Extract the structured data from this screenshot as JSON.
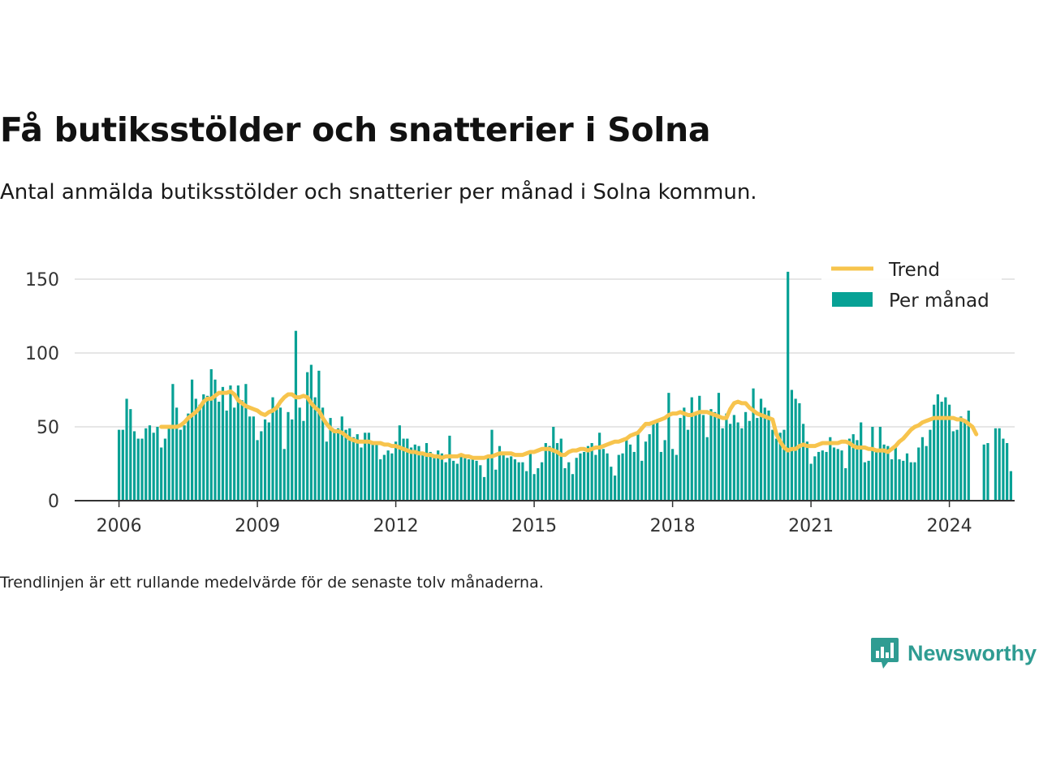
{
  "header": {
    "title": "Få butiksstölder och snatterier i Solna",
    "subtitle": "Antal anmälda butiksstölder och snatterier per månad i Solna kommun."
  },
  "footer": {
    "note": "Trendlinjen är ett rullande medelvärde för de senaste tolv månaderna."
  },
  "brand": {
    "name": "Newsworthy",
    "icon": "newsworthy-logo-icon"
  },
  "colors": {
    "bars": "#07a195",
    "trend": "#f7c44d",
    "grid": "#dddddd",
    "axis": "#333333",
    "brand": "#2f9c92"
  },
  "chart_data": {
    "type": "bar",
    "title": "Få butiksstölder och snatterier i Solna",
    "xlabel": "",
    "ylabel": "",
    "x_start": "2006-01",
    "x_ticks": [
      "2006",
      "2009",
      "2012",
      "2015",
      "2018",
      "2021",
      "2024"
    ],
    "y_ticks": [
      0,
      50,
      100,
      150
    ],
    "ylim": [
      0,
      160
    ],
    "grid": true,
    "legend_position": "top-right",
    "series": [
      {
        "name": "Per månad",
        "type": "bar",
        "values": [
          48,
          48,
          69,
          62,
          47,
          42,
          42,
          49,
          51,
          46,
          50,
          36,
          42,
          49,
          79,
          63,
          48,
          51,
          59,
          82,
          69,
          65,
          72,
          71,
          89,
          82,
          67,
          77,
          61,
          78,
          63,
          78,
          68,
          79,
          57,
          57,
          41,
          47,
          55,
          53,
          70,
          62,
          63,
          35,
          60,
          55,
          115,
          63,
          54,
          87,
          92,
          70,
          88,
          63,
          40,
          56,
          47,
          49,
          57,
          48,
          49,
          43,
          45,
          36,
          46,
          46,
          40,
          39,
          28,
          31,
          34,
          32,
          40,
          51,
          42,
          42,
          36,
          38,
          37,
          32,
          39,
          33,
          29,
          34,
          32,
          26,
          44,
          27,
          25,
          30,
          30,
          28,
          29,
          27,
          24,
          16,
          29,
          48,
          21,
          37,
          32,
          29,
          30,
          28,
          26,
          26,
          20,
          34,
          18,
          22,
          26,
          39,
          37,
          50,
          39,
          42,
          22,
          26,
          18,
          29,
          32,
          33,
          37,
          39,
          31,
          46,
          35,
          32,
          23,
          17,
          31,
          32,
          41,
          38,
          33,
          47,
          27,
          40,
          45,
          54,
          55,
          33,
          41,
          73,
          35,
          31,
          56,
          63,
          48,
          70,
          58,
          71,
          58,
          43,
          62,
          60,
          73,
          49,
          59,
          52,
          58,
          53,
          49,
          60,
          54,
          76,
          56,
          69,
          63,
          61,
          48,
          42,
          46,
          48,
          155,
          75,
          69,
          66,
          52,
          40,
          25,
          30,
          33,
          34,
          33,
          43,
          36,
          35,
          34,
          22,
          42,
          45,
          41,
          53,
          26,
          27,
          50,
          33,
          50,
          38,
          37,
          28,
          38,
          28,
          27,
          32,
          26,
          26,
          36,
          43,
          37,
          48,
          65,
          72,
          67,
          70,
          65,
          47,
          48,
          57,
          53,
          61,
          0,
          0,
          0,
          38,
          39,
          0,
          49,
          49,
          42,
          39,
          20
        ]
      },
      {
        "name": "Trend",
        "type": "line",
        "start_index": 11,
        "values": [
          50,
          50,
          50,
          50,
          50,
          51,
          53,
          56,
          58,
          60,
          63,
          67,
          69,
          69,
          71,
          73,
          73,
          73,
          74,
          72,
          68,
          66,
          64,
          63,
          62,
          61,
          59,
          58,
          60,
          61,
          63,
          67,
          70,
          72,
          72,
          70,
          70,
          71,
          70,
          66,
          63,
          61,
          56,
          52,
          49,
          47,
          47,
          46,
          44,
          42,
          41,
          40,
          40,
          40,
          40,
          39,
          39,
          39,
          38,
          38,
          37,
          37,
          36,
          35,
          34,
          33,
          33,
          32,
          32,
          31,
          31,
          30,
          30,
          29,
          30,
          30,
          30,
          30,
          31,
          30,
          30,
          29,
          29,
          29,
          29,
          30,
          30,
          31,
          32,
          32,
          32,
          32,
          31,
          31,
          31,
          32,
          33,
          33,
          34,
          35,
          35,
          35,
          34,
          33,
          31,
          31,
          33,
          34,
          34,
          35,
          35,
          34,
          35,
          36,
          36,
          37,
          38,
          39,
          40,
          40,
          41,
          42,
          44,
          45,
          46,
          49,
          52,
          52,
          53,
          54,
          55,
          56,
          58,
          59,
          59,
          60,
          59,
          58,
          58,
          59,
          60,
          60,
          60,
          59,
          58,
          57,
          56,
          56,
          62,
          66,
          67,
          66,
          66,
          63,
          61,
          59,
          58,
          57,
          56,
          55,
          45,
          40,
          36,
          34,
          35,
          35,
          37,
          38,
          37,
          37,
          37,
          38,
          39,
          39,
          39,
          39,
          39,
          40,
          40,
          39,
          37,
          36,
          36,
          36,
          35,
          35,
          34,
          34,
          34,
          33,
          35,
          37,
          40,
          42,
          45,
          48,
          50,
          51,
          53,
          54,
          55,
          56,
          56,
          56,
          56,
          56,
          56,
          55,
          55,
          54,
          52,
          50,
          45
        ]
      }
    ]
  }
}
